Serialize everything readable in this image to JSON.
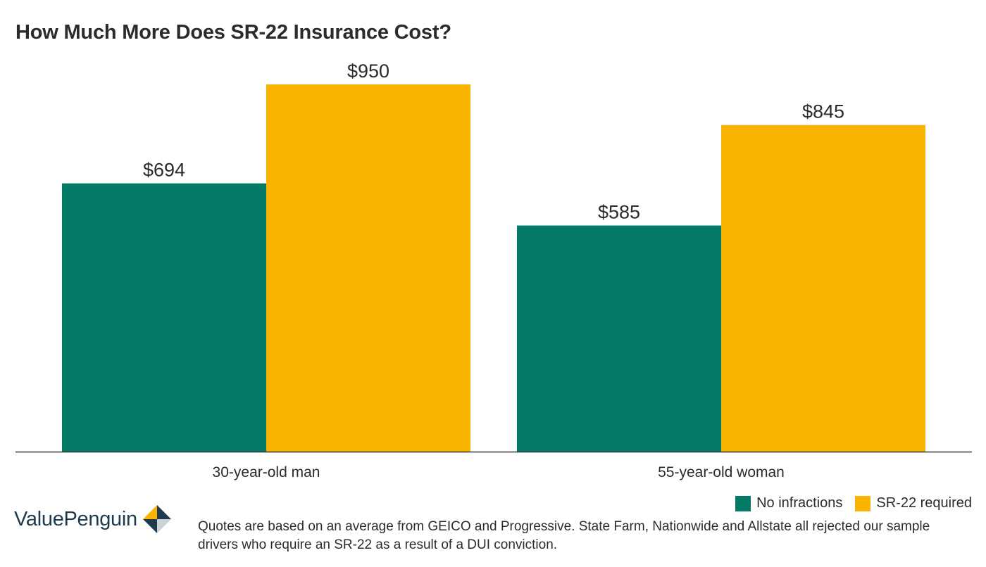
{
  "chart_data": {
    "type": "bar",
    "title": "How Much More Does SR-22 Insurance Cost?",
    "categories": [
      "30-year-old man",
      "55-year-old woman"
    ],
    "series": [
      {
        "name": "No infractions",
        "color": "#027a66",
        "values": [
          694,
          585
        ],
        "labels": [
          "$694",
          "$585"
        ]
      },
      {
        "name": "SR-22 required",
        "color": "#f8b400",
        "values": [
          950,
          845
        ],
        "labels": [
          "$950",
          "$845"
        ]
      }
    ],
    "xlabel": "",
    "ylabel": "",
    "ylim": [
      0,
      950
    ],
    "grid": false,
    "legend_position": "bottom-right"
  },
  "legend": {
    "no_infractions": "No infractions",
    "sr22_required": "SR-22 required"
  },
  "brand": {
    "name": "ValuePenguin",
    "colors": {
      "dark": "#1e3a4c",
      "gold": "#f8b400",
      "light": "#c9d3d8"
    }
  },
  "footnote": "Quotes are based on an average from GEICO and Progressive. State Farm, Nationwide and Allstate all rejected our sample drivers who require an SR-22 as a result of a DUI conviction."
}
